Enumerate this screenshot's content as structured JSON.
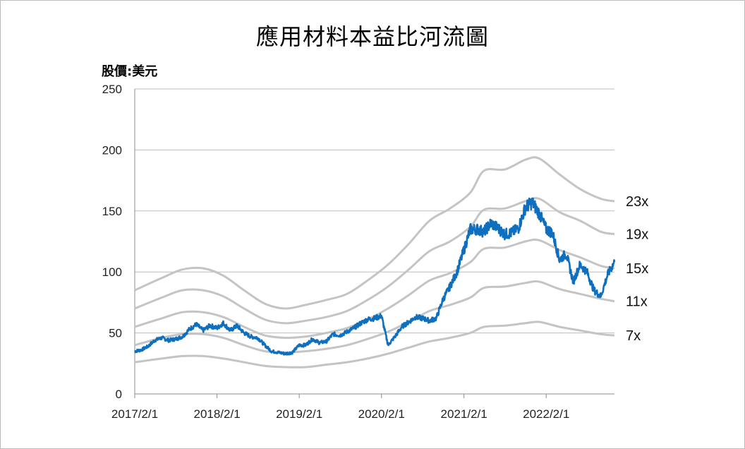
{
  "chart_data": {
    "type": "line",
    "title": "應用材料本益比河流圖",
    "ylabel": "股價:美元",
    "xlabel": "",
    "ylim": [
      0,
      250
    ],
    "yticks": [
      0,
      50,
      100,
      150,
      200,
      250
    ],
    "xlim": [
      "2017-02-01",
      "2022-12-01"
    ],
    "xticks": [
      "2017/2/1",
      "2018/2/1",
      "2019/2/1",
      "2020/2/1",
      "2021/2/1",
      "2022/2/1"
    ],
    "grid": true,
    "colors": {
      "price": "#0f6fbf",
      "band": "#c4c4c4",
      "grid": "#bdbdbd"
    },
    "bands": [
      {
        "name": "23x",
        "points": [
          [
            "2017-02-01",
            85
          ],
          [
            "2017-06-01",
            95
          ],
          [
            "2017-09-01",
            102
          ],
          [
            "2017-12-01",
            103
          ],
          [
            "2018-03-01",
            97
          ],
          [
            "2018-06-01",
            85
          ],
          [
            "2018-09-01",
            74
          ],
          [
            "2018-12-01",
            70
          ],
          [
            "2019-03-01",
            73
          ],
          [
            "2019-06-01",
            77
          ],
          [
            "2019-09-01",
            82
          ],
          [
            "2019-12-01",
            93
          ],
          [
            "2020-03-01",
            106
          ],
          [
            "2020-06-01",
            123
          ],
          [
            "2020-09-01",
            142
          ],
          [
            "2020-12-01",
            152
          ],
          [
            "2021-03-01",
            165
          ],
          [
            "2021-05-01",
            183
          ],
          [
            "2021-08-01",
            184
          ],
          [
            "2021-11-01",
            192
          ],
          [
            "2022-01-01",
            193
          ],
          [
            "2022-04-01",
            180
          ],
          [
            "2022-07-01",
            168
          ],
          [
            "2022-10-01",
            160
          ],
          [
            "2022-12-01",
            158
          ]
        ]
      },
      {
        "name": "19x",
        "points": [
          [
            "2017-02-01",
            70
          ],
          [
            "2017-06-01",
            79
          ],
          [
            "2017-09-01",
            85
          ],
          [
            "2017-12-01",
            85
          ],
          [
            "2018-03-01",
            80
          ],
          [
            "2018-06-01",
            70
          ],
          [
            "2018-09-01",
            61
          ],
          [
            "2018-12-01",
            58
          ],
          [
            "2019-03-01",
            60
          ],
          [
            "2019-06-01",
            63
          ],
          [
            "2019-09-01",
            68
          ],
          [
            "2019-12-01",
            77
          ],
          [
            "2020-03-01",
            88
          ],
          [
            "2020-06-01",
            102
          ],
          [
            "2020-09-01",
            117
          ],
          [
            "2020-12-01",
            125
          ],
          [
            "2021-03-01",
            137
          ],
          [
            "2021-05-01",
            151
          ],
          [
            "2021-08-01",
            152
          ],
          [
            "2021-11-01",
            158
          ],
          [
            "2022-01-01",
            160
          ],
          [
            "2022-04-01",
            149
          ],
          [
            "2022-07-01",
            142
          ],
          [
            "2022-10-01",
            133
          ],
          [
            "2022-12-01",
            131
          ]
        ]
      },
      {
        "name": "15x",
        "points": [
          [
            "2017-02-01",
            55
          ],
          [
            "2017-06-01",
            62
          ],
          [
            "2017-09-01",
            67
          ],
          [
            "2017-12-01",
            67
          ],
          [
            "2018-03-01",
            63
          ],
          [
            "2018-06-01",
            55
          ],
          [
            "2018-09-01",
            48
          ],
          [
            "2018-12-01",
            46
          ],
          [
            "2019-03-01",
            47
          ],
          [
            "2019-06-01",
            50
          ],
          [
            "2019-09-01",
            54
          ],
          [
            "2019-12-01",
            61
          ],
          [
            "2020-03-01",
            70
          ],
          [
            "2020-06-01",
            81
          ],
          [
            "2020-09-01",
            93
          ],
          [
            "2020-12-01",
            99
          ],
          [
            "2021-03-01",
            108
          ],
          [
            "2021-05-01",
            119
          ],
          [
            "2021-08-01",
            120
          ],
          [
            "2021-11-01",
            125
          ],
          [
            "2022-01-01",
            126
          ],
          [
            "2022-04-01",
            118
          ],
          [
            "2022-07-01",
            112
          ],
          [
            "2022-10-01",
            105
          ],
          [
            "2022-12-01",
            103
          ]
        ]
      },
      {
        "name": "11x",
        "points": [
          [
            "2017-02-01",
            40
          ],
          [
            "2017-06-01",
            46
          ],
          [
            "2017-09-01",
            49
          ],
          [
            "2017-12-01",
            49
          ],
          [
            "2018-03-01",
            46
          ],
          [
            "2018-06-01",
            40
          ],
          [
            "2018-09-01",
            35
          ],
          [
            "2018-12-01",
            34
          ],
          [
            "2019-03-01",
            35
          ],
          [
            "2019-06-01",
            37
          ],
          [
            "2019-09-01",
            40
          ],
          [
            "2019-12-01",
            45
          ],
          [
            "2020-03-01",
            51
          ],
          [
            "2020-06-01",
            59
          ],
          [
            "2020-09-01",
            68
          ],
          [
            "2020-12-01",
            73
          ],
          [
            "2021-03-01",
            79
          ],
          [
            "2021-05-01",
            87
          ],
          [
            "2021-08-01",
            88
          ],
          [
            "2021-11-01",
            91
          ],
          [
            "2022-01-01",
            92
          ],
          [
            "2022-04-01",
            86
          ],
          [
            "2022-07-01",
            82
          ],
          [
            "2022-10-01",
            78
          ],
          [
            "2022-12-01",
            76
          ]
        ]
      },
      {
        "name": "7x",
        "points": [
          [
            "2017-02-01",
            26
          ],
          [
            "2017-06-01",
            29
          ],
          [
            "2017-09-01",
            31
          ],
          [
            "2017-12-01",
            31
          ],
          [
            "2018-03-01",
            29
          ],
          [
            "2018-06-01",
            26
          ],
          [
            "2018-09-01",
            23
          ],
          [
            "2018-12-01",
            22
          ],
          [
            "2019-03-01",
            22
          ],
          [
            "2019-06-01",
            24
          ],
          [
            "2019-09-01",
            26
          ],
          [
            "2019-12-01",
            29
          ],
          [
            "2020-03-01",
            33
          ],
          [
            "2020-06-01",
            38
          ],
          [
            "2020-09-01",
            43
          ],
          [
            "2020-12-01",
            46
          ],
          [
            "2021-03-01",
            50
          ],
          [
            "2021-05-01",
            55
          ],
          [
            "2021-08-01",
            56
          ],
          [
            "2021-11-01",
            58
          ],
          [
            "2022-01-01",
            59
          ],
          [
            "2022-04-01",
            55
          ],
          [
            "2022-07-01",
            52
          ],
          [
            "2022-10-01",
            49
          ],
          [
            "2022-12-01",
            48
          ]
        ]
      }
    ],
    "series": [
      {
        "points": [
          [
            "2017-02-01",
            35
          ],
          [
            "2017-03-01",
            36
          ],
          [
            "2017-04-01",
            39
          ],
          [
            "2017-05-01",
            44
          ],
          [
            "2017-06-01",
            46
          ],
          [
            "2017-07-01",
            44
          ],
          [
            "2017-08-01",
            45
          ],
          [
            "2017-09-01",
            47
          ],
          [
            "2017-10-01",
            53
          ],
          [
            "2017-11-01",
            57
          ],
          [
            "2017-12-01",
            52
          ],
          [
            "2018-01-01",
            56
          ],
          [
            "2018-02-01",
            54
          ],
          [
            "2018-03-01",
            58
          ],
          [
            "2018-04-01",
            52
          ],
          [
            "2018-05-01",
            56
          ],
          [
            "2018-06-01",
            50
          ],
          [
            "2018-07-01",
            47
          ],
          [
            "2018-08-01",
            46
          ],
          [
            "2018-09-01",
            40
          ],
          [
            "2018-10-01",
            35
          ],
          [
            "2018-11-01",
            34
          ],
          [
            "2018-12-01",
            33
          ],
          [
            "2019-01-01",
            34
          ],
          [
            "2019-02-01",
            40
          ],
          [
            "2019-03-01",
            40
          ],
          [
            "2019-04-01",
            45
          ],
          [
            "2019-05-01",
            42
          ],
          [
            "2019-06-01",
            43
          ],
          [
            "2019-07-01",
            49
          ],
          [
            "2019-08-01",
            48
          ],
          [
            "2019-09-01",
            51
          ],
          [
            "2019-10-01",
            54
          ],
          [
            "2019-11-01",
            58
          ],
          [
            "2019-12-01",
            61
          ],
          [
            "2020-01-01",
            62
          ],
          [
            "2020-02-01",
            64
          ],
          [
            "2020-03-01",
            40
          ],
          [
            "2020-04-01",
            47
          ],
          [
            "2020-05-01",
            55
          ],
          [
            "2020-06-01",
            59
          ],
          [
            "2020-07-01",
            63
          ],
          [
            "2020-08-01",
            62
          ],
          [
            "2020-09-01",
            60
          ],
          [
            "2020-10-01",
            62
          ],
          [
            "2020-11-01",
            78
          ],
          [
            "2020-12-01",
            88
          ],
          [
            "2021-01-01",
            100
          ],
          [
            "2021-02-01",
            118
          ],
          [
            "2021-03-01",
            135
          ],
          [
            "2021-04-01",
            135
          ],
          [
            "2021-05-01",
            133
          ],
          [
            "2021-06-01",
            140
          ],
          [
            "2021-07-01",
            136
          ],
          [
            "2021-08-01",
            131
          ],
          [
            "2021-09-01",
            132
          ],
          [
            "2021-10-01",
            136
          ],
          [
            "2021-11-01",
            153
          ],
          [
            "2021-12-01",
            157
          ],
          [
            "2022-01-01",
            148
          ],
          [
            "2022-02-01",
            135
          ],
          [
            "2022-03-01",
            132
          ],
          [
            "2022-04-01",
            110
          ],
          [
            "2022-05-01",
            115
          ],
          [
            "2022-06-01",
            92
          ],
          [
            "2022-07-01",
            106
          ],
          [
            "2022-08-01",
            100
          ],
          [
            "2022-09-01",
            85
          ],
          [
            "2022-10-01",
            80
          ],
          [
            "2022-11-01",
            98
          ],
          [
            "2022-12-01",
            108
          ]
        ]
      }
    ]
  }
}
